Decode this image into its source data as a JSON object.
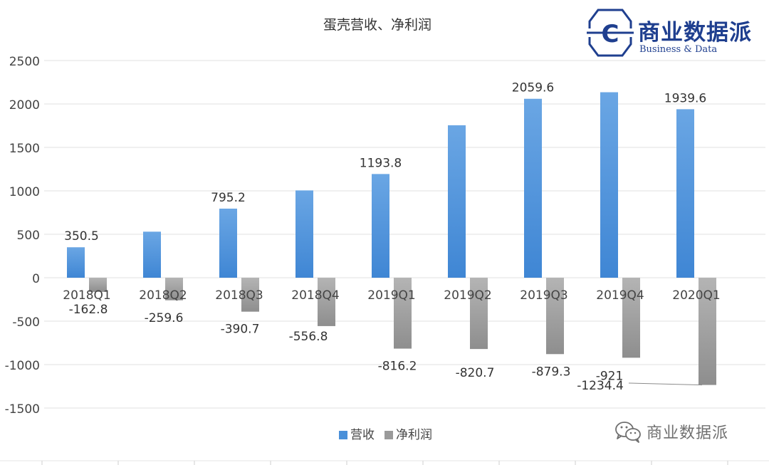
{
  "brand": {
    "name_cn": "商业数据派",
    "name_en": "Business & Data",
    "icon": "c-letter-logo-icon",
    "color": "#1f3f8f"
  },
  "watermark": {
    "icon": "wechat-icon",
    "text": "商业数据派"
  },
  "chart_data": {
    "type": "bar",
    "title": "蛋壳营收、净利润",
    "xlabel": "",
    "ylabel": "",
    "categories": [
      "2018Q1",
      "2018Q2",
      "2018Q3",
      "2018Q4",
      "2019Q1",
      "2019Q2",
      "2019Q3",
      "2019Q4",
      "2020Q1"
    ],
    "series": [
      {
        "name": "营收",
        "color": "#4a90d9",
        "values": [
          350.5,
          530,
          795.2,
          1005,
          1193.8,
          1755,
          2059.6,
          2135,
          1939.6
        ],
        "labels": [
          "350.5",
          "",
          "795.2",
          "",
          "1193.8",
          "",
          "2059.6",
          "",
          "1939.6"
        ]
      },
      {
        "name": "净利润",
        "color": "#9a9a9a",
        "values": [
          -162.8,
          -259.6,
          -390.7,
          -556.8,
          -816.2,
          -820.7,
          -879.3,
          -921,
          -1234.4
        ],
        "labels": [
          "-162.8",
          "-259.6",
          "-390.7",
          "-556.8",
          "-816.2",
          "-820.7",
          "-879.3",
          "-921",
          "-1234.4"
        ]
      }
    ],
    "ylim": [
      -1500,
      2500
    ],
    "yticks": [
      2500,
      2000,
      1500,
      1000,
      500,
      0,
      -500,
      -1000,
      -1500
    ],
    "grid": true,
    "legend": "bottom-center"
  }
}
